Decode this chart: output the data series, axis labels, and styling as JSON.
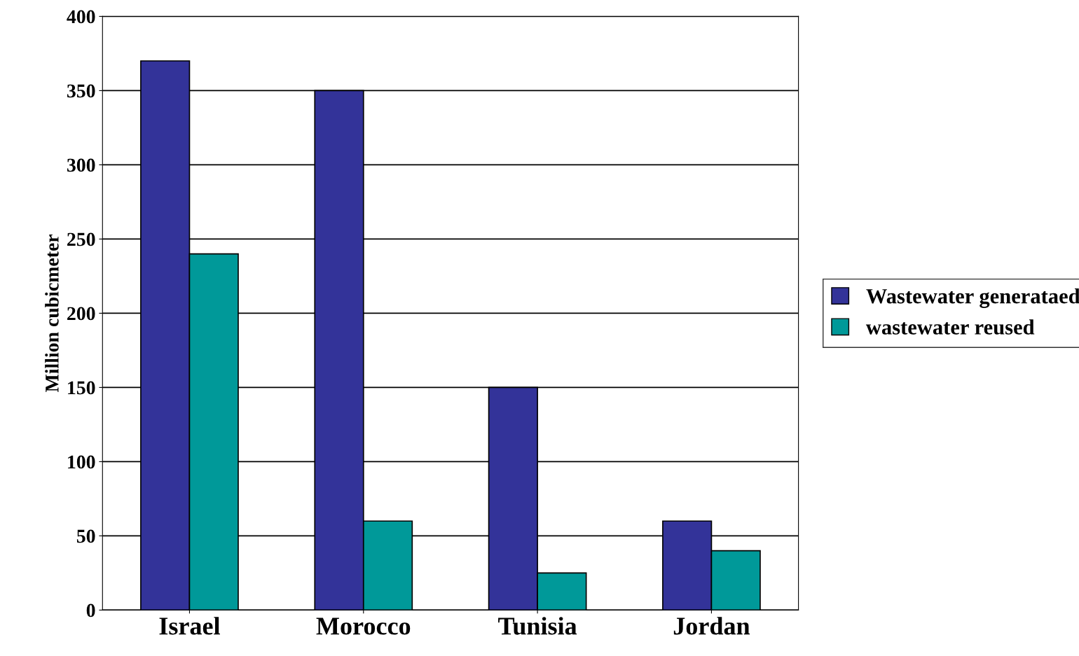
{
  "chart_data": {
    "type": "bar",
    "ylabel": "Million cubicmeter",
    "categories": [
      "Israel",
      "Morocco",
      "Tunisia",
      "Jordan"
    ],
    "series": [
      {
        "name": "Wastewater generataed",
        "color": "#333399",
        "values": [
          370,
          350,
          150,
          60
        ]
      },
      {
        "name": "wastewater reused",
        "color": "#009999",
        "values": [
          240,
          60,
          25,
          40
        ]
      }
    ],
    "ylim": [
      0,
      400
    ],
    "yticks": [
      0,
      50,
      100,
      150,
      200,
      250,
      300,
      350,
      400
    ],
    "grid": "y",
    "legend": "right"
  }
}
